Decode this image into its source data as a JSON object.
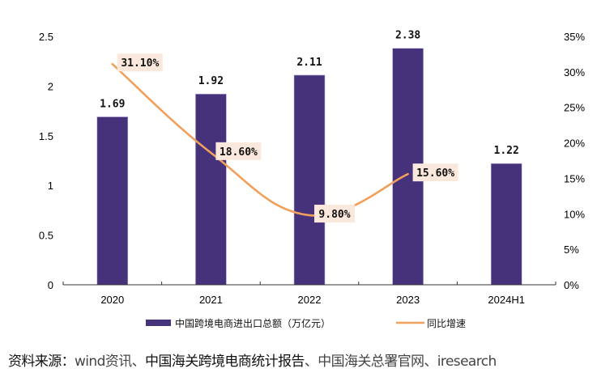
{
  "chart_data": {
    "type": "bar+line",
    "categories": [
      "2020",
      "2021",
      "2022",
      "2023",
      "2024H1"
    ],
    "series": [
      {
        "name": "中国跨境电商进出口总额（万亿元）",
        "type": "bar",
        "axis": "left",
        "values": [
          1.69,
          1.92,
          2.11,
          2.38,
          1.22
        ],
        "labels": [
          "1.69",
          "1.92",
          "2.11",
          "2.38",
          "1.22"
        ],
        "color": "#46327a"
      },
      {
        "name": "同比增速",
        "type": "line",
        "axis": "right",
        "smooth": true,
        "values": [
          31.1,
          18.6,
          9.8,
          15.6,
          null
        ],
        "labels": [
          "31.10%",
          "18.60%",
          "9.80%",
          "15.60%"
        ],
        "color": "#f0a05a",
        "label_bg": "#fbe8dc"
      }
    ],
    "left_axis": {
      "ylim": [
        0,
        2.5
      ],
      "ticks": [
        0,
        0.5,
        1,
        1.5,
        2,
        2.5
      ],
      "tick_labels": [
        "0",
        "0.5",
        "1",
        "1.5",
        "2",
        "2.5"
      ]
    },
    "right_axis": {
      "ylim": [
        0,
        35
      ],
      "ticks": [
        0,
        5,
        10,
        15,
        20,
        25,
        30,
        35
      ],
      "tick_labels": [
        "0%",
        "5%",
        "10%",
        "15%",
        "20%",
        "25%",
        "30%",
        "35%"
      ]
    },
    "title": "",
    "xlabel": "",
    "ylabel": "",
    "grid": false,
    "legend": {
      "placement": "bottom-center",
      "entries": [
        "中国跨境电商进出口总额（万亿元）",
        "同比增速"
      ]
    }
  },
  "source": {
    "prefix": "资料来源：",
    "part1": "wind资讯、",
    "part2": "中国海关跨境电商统计报告",
    "part3": "、中国海关总署官网、iresearch"
  }
}
